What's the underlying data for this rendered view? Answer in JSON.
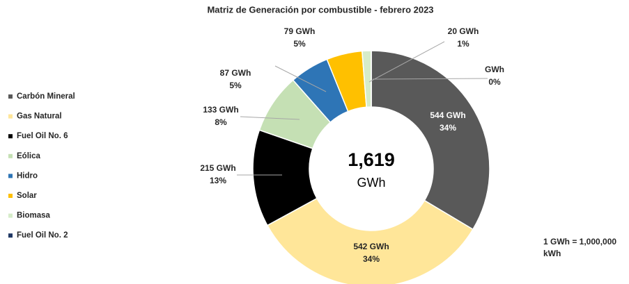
{
  "chart_data": {
    "type": "donut",
    "title": "Matriz de Generación por combustible - febrero 2023",
    "categories": [
      "Carbón Mineral",
      "Gas Natural",
      "Fuel Oil No. 6",
      "Eólica",
      "Hidro",
      "Solar",
      "Biomasa",
      "Fuel Oil No. 2"
    ],
    "values": [
      544,
      542,
      215,
      133,
      87,
      79,
      20,
      0
    ],
    "value_labels": [
      "544 GWh",
      "542 GWh",
      "215 GWh",
      "133 GWh",
      "87 GWh",
      "79 GWh",
      "20 GWh",
      "GWh"
    ],
    "percent_labels": [
      "34%",
      "34%",
      "13%",
      "8%",
      "5%",
      "5%",
      "1%",
      "0%"
    ],
    "colors": [
      "#595959",
      "#ffe699",
      "#000000",
      "#c5e0b4",
      "#2e75b6",
      "#ffc000",
      "#d6ecc9",
      "#203864"
    ],
    "center_label": "1,619",
    "center_unit": "GWh",
    "note": "1 GWh = 1,000,000 kWh",
    "legend": "left"
  }
}
